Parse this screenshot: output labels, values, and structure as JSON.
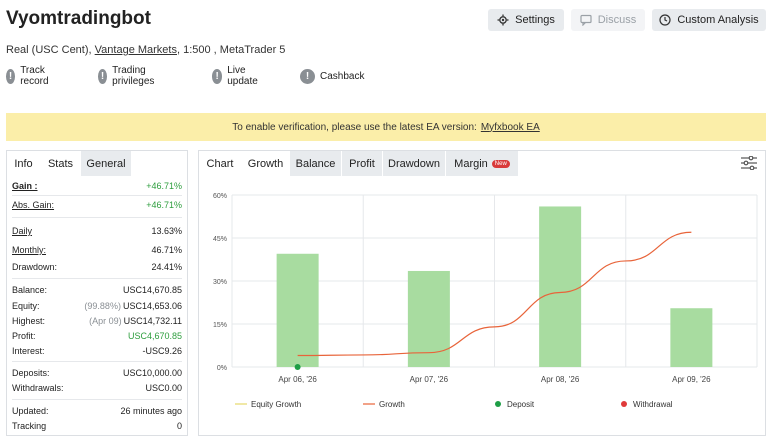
{
  "header": {
    "title": "Vyomtradingbot",
    "account_type": "Real (USC Cent),",
    "broker": "Vantage Markets",
    "leverage_platform": ", 1:500 , MetaTrader 5",
    "buttons": {
      "settings": "Settings",
      "discuss": "Discuss",
      "custom_analysis": "Custom Analysis"
    }
  },
  "badges": [
    "Track record",
    "Trading privileges",
    "Live update",
    "Cashback"
  ],
  "notice": {
    "text": "To enable verification, please use the latest EA version:",
    "link": "Myfxbook EA"
  },
  "left_panel": {
    "tabs": [
      "Info",
      "Stats",
      "General"
    ],
    "rows": [
      {
        "label": "Gain :",
        "value": "+46.71%"
      },
      {
        "label": "Abs. Gain:",
        "value": "+46.71%"
      },
      {
        "label": "Daily",
        "value": "13.63%"
      },
      {
        "label": "Monthly:",
        "value": "46.71%"
      },
      {
        "label": "Drawdown:",
        "value": "24.41%"
      },
      {
        "label": "Balance:",
        "value": "USC14,670.85"
      },
      {
        "label": "Equity:",
        "prefix": "(99.88%)",
        "value": "USC14,653.06"
      },
      {
        "label": "Highest:",
        "prefix": "(Apr 09)",
        "value": "USC14,732.11"
      },
      {
        "label": "Profit:",
        "value": "USC4,670.85"
      },
      {
        "label": "Interest:",
        "value": "-USC9.26"
      },
      {
        "label": "Deposits:",
        "value": "USC10,000.00"
      },
      {
        "label": "Withdrawals:",
        "value": "USC0.00"
      },
      {
        "label": "Updated:",
        "value": "26 minutes ago"
      },
      {
        "label": "Tracking",
        "value": "0"
      }
    ]
  },
  "right_panel": {
    "tabs": [
      "Chart",
      "Growth",
      "Balance",
      "Profit",
      "Drawdown",
      "Margin"
    ],
    "new_badge": "New"
  },
  "chart_data": {
    "type": "bar",
    "categories": [
      "Apr 06, '26",
      "Apr 07, '26",
      "Apr 08, '26",
      "Apr 09, '26"
    ],
    "yticks": [
      "0%",
      "15%",
      "30%",
      "45%",
      "60%"
    ],
    "ylim": [
      0,
      60
    ],
    "bar_color": "#a8dca0",
    "line_color": "#e8643a",
    "series": [
      {
        "name": "Growth",
        "type": "bar",
        "values": [
          39.5,
          33.5,
          56,
          20.5
        ]
      },
      {
        "name": "Growth",
        "type": "line",
        "x": [
          0,
          0.5,
          1,
          1.5,
          2,
          2.5,
          3
        ],
        "values": [
          4,
          4.2,
          5,
          14,
          26,
          37,
          47
        ]
      }
    ],
    "deposit_points": [
      {
        "x": 0,
        "value": 0
      }
    ],
    "legend": [
      "Equity Growth",
      "Growth",
      "Deposit",
      "Withdrawal"
    ],
    "legend_colors": [
      "#e6d96a",
      "#e8643a",
      "#1e9e46",
      "#e03a3a"
    ],
    "grid": true,
    "legend_position": "bottom"
  }
}
